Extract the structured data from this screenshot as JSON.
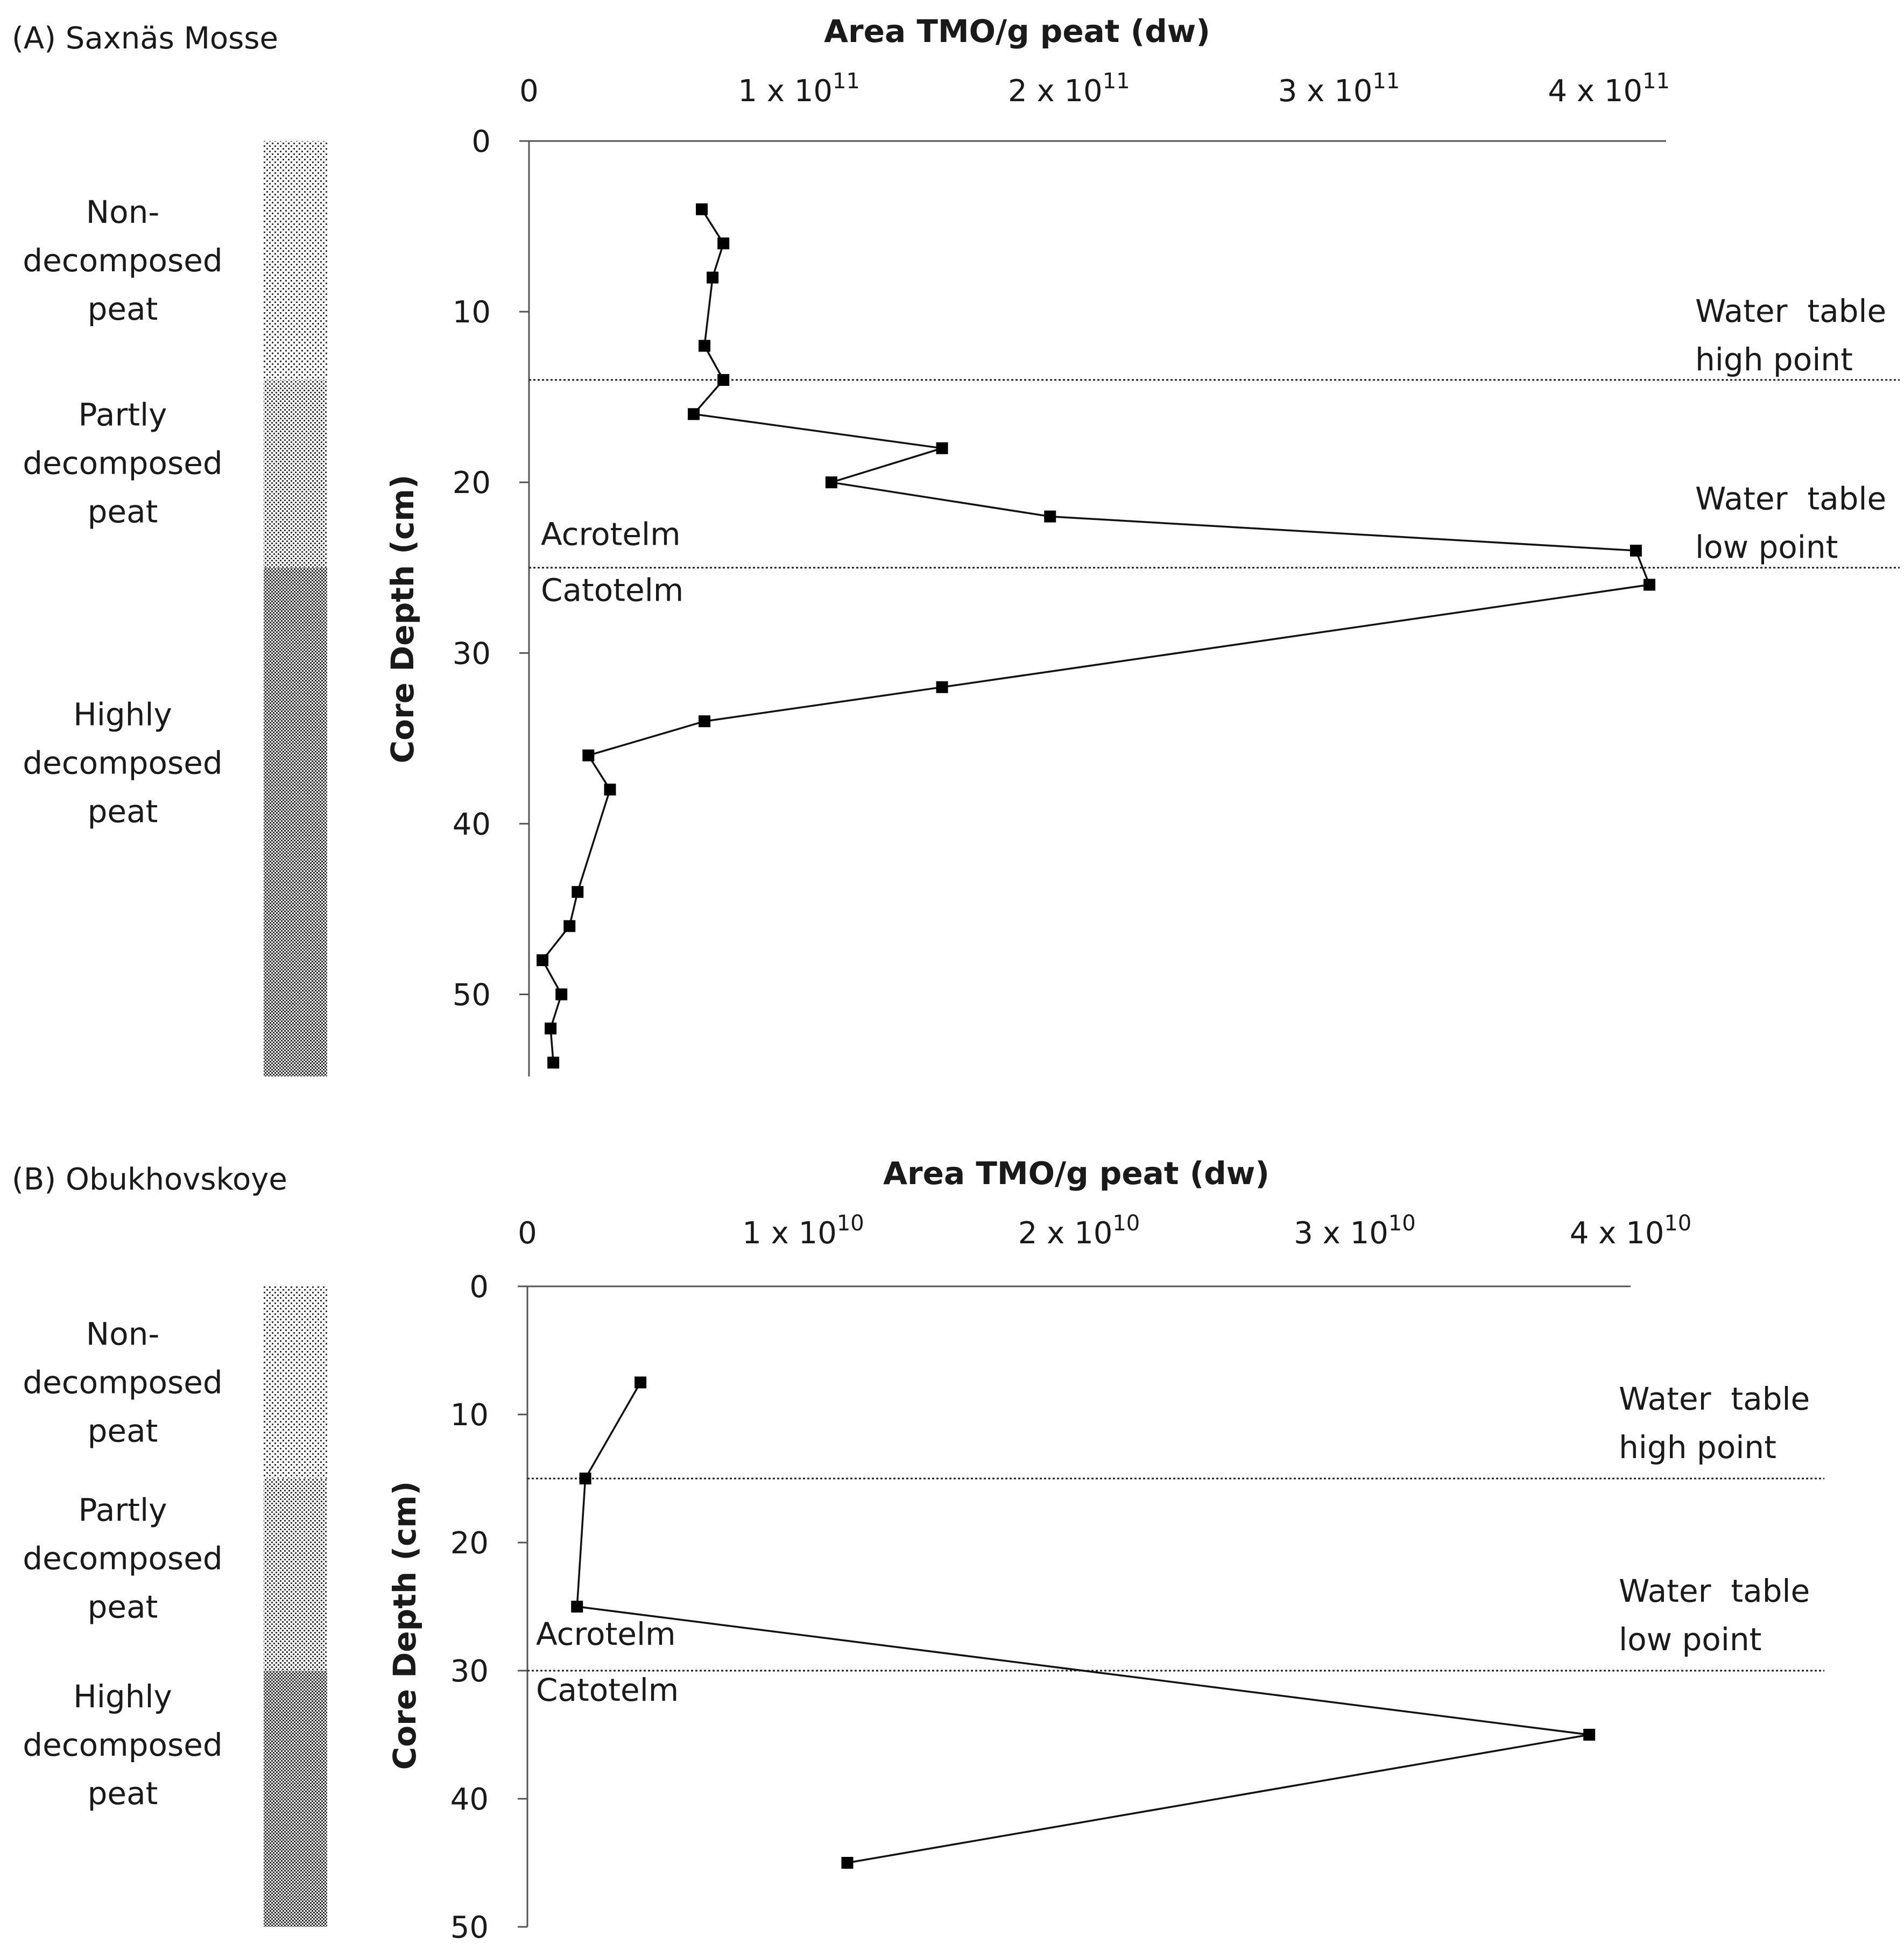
{
  "chart_data": [
    {
      "type": "line",
      "panel_label": "(A) Saxnäs Mosse",
      "xlabel": "Area TMO/g peat (dw)",
      "ylabel": "Core Depth (cm)",
      "xlim": [
        0,
        420000000000
      ],
      "ylim": [
        0,
        55
      ],
      "x_ticks": [
        0,
        100000000000,
        200000000000,
        300000000000,
        400000000000
      ],
      "x_tick_labels": [
        {
          "base": "0",
          "exp": ""
        },
        {
          "base": "1 x 10",
          "exp": "11"
        },
        {
          "base": "2 x 10",
          "exp": "11"
        },
        {
          "base": "3 x 10",
          "exp": "11"
        },
        {
          "base": "4 x 10",
          "exp": "11"
        }
      ],
      "y_ticks": [
        0,
        10,
        20,
        30,
        40,
        50
      ],
      "y_tick_labels": [
        "0",
        "10",
        "20",
        "30",
        "40",
        "50"
      ],
      "series": [
        {
          "name": "TMO",
          "points": [
            {
              "x": 64000000000,
              "y": 4
            },
            {
              "x": 72000000000,
              "y": 6
            },
            {
              "x": 68000000000,
              "y": 8
            },
            {
              "x": 65000000000,
              "y": 12
            },
            {
              "x": 72000000000,
              "y": 14
            },
            {
              "x": 61000000000,
              "y": 16
            },
            {
              "x": 153000000000,
              "y": 18
            },
            {
              "x": 112000000000,
              "y": 20
            },
            {
              "x": 193000000000,
              "y": 22
            },
            {
              "x": 410000000000,
              "y": 24
            },
            {
              "x": 415000000000,
              "y": 26
            },
            {
              "x": 153000000000,
              "y": 32
            },
            {
              "x": 65000000000,
              "y": 34
            },
            {
              "x": 22000000000,
              "y": 36
            },
            {
              "x": 30000000000,
              "y": 38
            },
            {
              "x": 18000000000,
              "y": 44
            },
            {
              "x": 15000000000,
              "y": 46
            },
            {
              "x": 5000000000,
              "y": 48
            },
            {
              "x": 12000000000,
              "y": 50
            },
            {
              "x": 8000000000,
              "y": 52
            },
            {
              "x": 9000000000,
              "y": 54
            }
          ]
        }
      ],
      "reference_lines": [
        {
          "depth": 14,
          "labels": [
            "Water  table",
            "high point"
          ]
        },
        {
          "depth": 25,
          "labels": [
            "Water  table",
            "low point"
          ]
        }
      ],
      "acrotelm_label": "Acrotelm",
      "catotelm_label": "Catotelm",
      "zones": [
        {
          "depth_start": 0,
          "depth_end": 14,
          "pattern": "sparse",
          "label_lines": [
            "Non-",
            "decomposed",
            "peat"
          ]
        },
        {
          "depth_start": 14,
          "depth_end": 25,
          "pattern": "medium",
          "label_lines": [
            "Partly",
            "decomposed",
            "peat"
          ]
        },
        {
          "depth_start": 25,
          "depth_end": 55,
          "pattern": "dense",
          "label_lines": [
            "Highly",
            "decomposed",
            "peat"
          ]
        }
      ]
    },
    {
      "type": "line",
      "panel_label": "(B) Obukhovskoye",
      "xlabel": "Area TMO/g peat (dw)",
      "ylabel": "Core Depth (cm)",
      "xlim": [
        0,
        40000000000
      ],
      "ylim": [
        0,
        50
      ],
      "x_ticks": [
        0,
        10000000000,
        20000000000,
        30000000000,
        40000000000
      ],
      "x_tick_labels": [
        {
          "base": "0",
          "exp": ""
        },
        {
          "base": "1 x 10",
          "exp": "10"
        },
        {
          "base": "2 x 10",
          "exp": "10"
        },
        {
          "base": "3 x 10",
          "exp": "10"
        },
        {
          "base": "4 x 10",
          "exp": "10"
        }
      ],
      "y_ticks": [
        0,
        10,
        20,
        30,
        40,
        50
      ],
      "y_tick_labels": [
        "0",
        "10",
        "20",
        "30",
        "40",
        "50"
      ],
      "series": [
        {
          "name": "TMO",
          "points": [
            {
              "x": 4100000000,
              "y": 7.5
            },
            {
              "x": 2100000000,
              "y": 15
            },
            {
              "x": 1800000000,
              "y": 25
            },
            {
              "x": 38500000000,
              "y": 35
            },
            {
              "x": 11600000000,
              "y": 45
            }
          ]
        }
      ],
      "reference_lines": [
        {
          "depth": 15,
          "labels": [
            "Water  table",
            "high point"
          ]
        },
        {
          "depth": 30,
          "labels": [
            "Water  table",
            "low point"
          ]
        }
      ],
      "acrotelm_label": "Acrotelm",
      "catotelm_label": "Catotelm",
      "zones": [
        {
          "depth_start": 0,
          "depth_end": 15,
          "pattern": "sparse",
          "label_lines": [
            "Non-",
            "decomposed",
            "peat"
          ]
        },
        {
          "depth_start": 15,
          "depth_end": 30,
          "pattern": "medium",
          "label_lines": [
            "Partly",
            "decomposed",
            "peat"
          ]
        },
        {
          "depth_start": 30,
          "depth_end": 50,
          "pattern": "dense",
          "label_lines": [
            "Highly",
            "decomposed",
            "peat"
          ]
        }
      ]
    }
  ]
}
